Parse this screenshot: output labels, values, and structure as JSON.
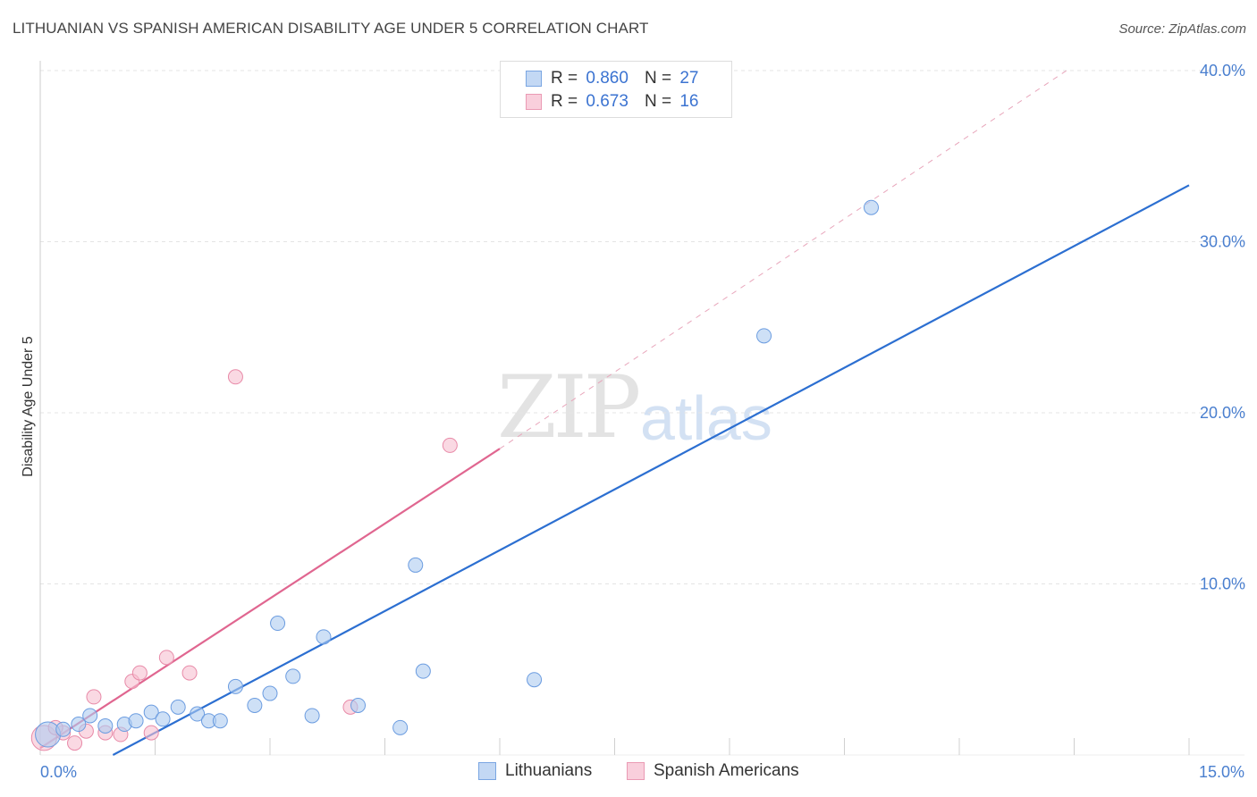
{
  "header": {
    "title": "LITHUANIAN VS SPANISH AMERICAN DISABILITY AGE UNDER 5 CORRELATION CHART",
    "source": "Source: ZipAtlas.com"
  },
  "watermark": {
    "zip": "ZIP",
    "atlas": "atlas"
  },
  "legend": {
    "rows": [
      {
        "r_label": "R =",
        "r_value": "0.860",
        "n_label": "N =",
        "n_value": "27"
      },
      {
        "r_label": "R =",
        "r_value": "0.673",
        "n_label": "N =",
        "n_value": "16"
      }
    ]
  },
  "bottom_legend": {
    "series1": "Lithuanians",
    "series2": "Spanish Americans"
  },
  "colors": {
    "blue_fill": "#aecbf0",
    "blue_stroke": "#6b9ce0",
    "blue_line": "#2c6fd1",
    "pink_fill": "#f7c0d0",
    "pink_stroke": "#e88aa8",
    "pink_line": "#e06690",
    "grid": "#e4e4e4",
    "tick_text": "#4a7fcf"
  },
  "chart_data": {
    "type": "scatter",
    "title": "LITHUANIAN VS SPANISH AMERICAN DISABILITY AGE UNDER 5 CORRELATION CHART",
    "xlabel": "",
    "ylabel": "Disability Age Under 5",
    "xlim": [
      0,
      15
    ],
    "ylim": [
      0,
      40
    ],
    "x_tick_labels": [
      "0.0%",
      "15.0%"
    ],
    "y_ticks": [
      10,
      20,
      30,
      40
    ],
    "y_tick_labels": [
      "10.0%",
      "20.0%",
      "30.0%",
      "40.0%"
    ],
    "grid": true,
    "legend_position": "top-center",
    "series": [
      {
        "name": "Lithuanians",
        "r": 0.86,
        "n": 27,
        "points": [
          [
            0.1,
            1.2
          ],
          [
            0.3,
            1.5
          ],
          [
            0.5,
            1.8
          ],
          [
            0.65,
            2.3
          ],
          [
            0.85,
            1.7
          ],
          [
            1.1,
            1.8
          ],
          [
            1.25,
            2.0
          ],
          [
            1.45,
            2.5
          ],
          [
            1.6,
            2.1
          ],
          [
            1.8,
            2.8
          ],
          [
            2.05,
            2.4
          ],
          [
            2.2,
            2.0
          ],
          [
            2.35,
            2.0
          ],
          [
            2.55,
            4.0
          ],
          [
            2.8,
            2.9
          ],
          [
            3.0,
            3.6
          ],
          [
            3.1,
            7.7
          ],
          [
            3.3,
            4.6
          ],
          [
            3.55,
            2.3
          ],
          [
            3.7,
            6.9
          ],
          [
            4.15,
            2.9
          ],
          [
            4.7,
            1.6
          ],
          [
            4.9,
            11.1
          ],
          [
            5.0,
            4.9
          ],
          [
            6.45,
            4.4
          ],
          [
            9.45,
            24.5
          ],
          [
            10.85,
            32.0
          ]
        ],
        "trend": {
          "x": [
            0.95,
            15.0
          ],
          "y": [
            0.0,
            33.3
          ]
        }
      },
      {
        "name": "Spanish Americans",
        "r": 0.673,
        "n": 16,
        "points": [
          [
            0.05,
            1.0
          ],
          [
            0.3,
            1.3
          ],
          [
            0.45,
            0.7
          ],
          [
            0.6,
            1.4
          ],
          [
            0.7,
            3.4
          ],
          [
            0.85,
            1.3
          ],
          [
            1.05,
            1.2
          ],
          [
            1.2,
            4.3
          ],
          [
            1.3,
            4.8
          ],
          [
            1.45,
            1.3
          ],
          [
            1.65,
            5.7
          ],
          [
            1.95,
            4.8
          ],
          [
            2.55,
            22.1
          ],
          [
            4.05,
            2.8
          ],
          [
            5.35,
            18.1
          ],
          [
            0.2,
            1.6
          ]
        ],
        "trend": {
          "x": [
            0.0,
            6.0
          ],
          "y": [
            0.4,
            17.9
          ]
        },
        "trend_extension": {
          "x": [
            6.0,
            13.4
          ],
          "y": [
            17.9,
            40.0
          ]
        }
      }
    ]
  }
}
